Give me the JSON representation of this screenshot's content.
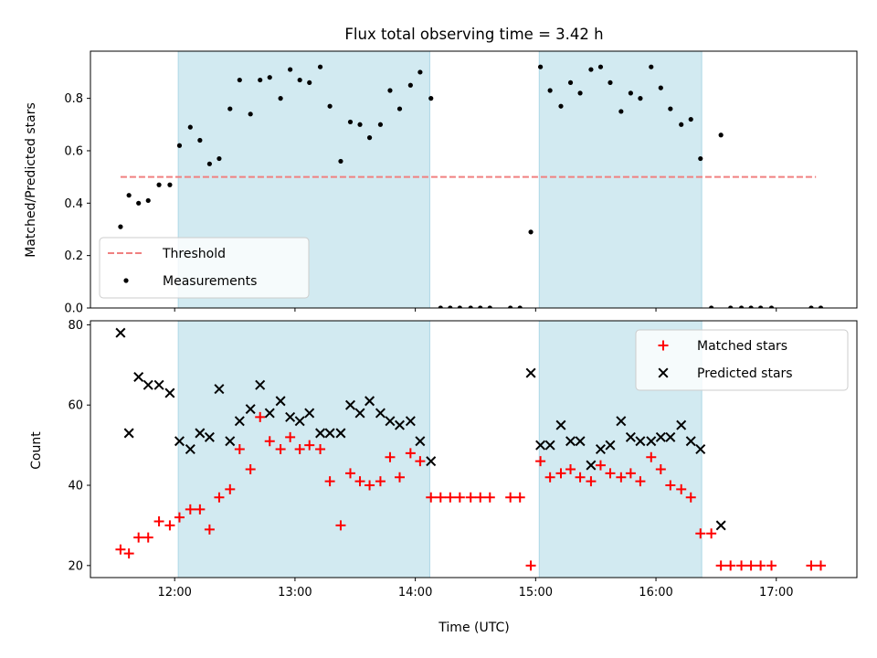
{
  "chart_data": [
    {
      "type": "scatter",
      "title": "Flux total observing time = 3.42 h",
      "xlabel": "",
      "ylabel": "Matched/Predicted stars",
      "x_unit": "hours UTC",
      "xlim": [
        11.3,
        17.67
      ],
      "ylim": [
        0.0,
        0.98
      ],
      "yticks": [
        0.0,
        0.2,
        0.4,
        0.6,
        0.8
      ],
      "ytick_labels": [
        "0.0",
        "0.2",
        "0.4",
        "0.6",
        "0.8"
      ],
      "xticks": [
        12,
        13,
        14,
        15,
        16,
        17
      ],
      "grid": false,
      "legend": {
        "position": "lower-left",
        "entries": [
          {
            "label": "Threshold",
            "kind": "line",
            "color": "#f08080"
          },
          {
            "label": "Measurements",
            "kind": "dot",
            "color": "#000000"
          }
        ]
      },
      "shaded_intervals": [
        [
          12.03,
          14.12
        ],
        [
          15.03,
          16.38
        ]
      ],
      "threshold": {
        "value": 0.5,
        "x": [
          11.55,
          17.33
        ],
        "color": "#f08080"
      },
      "series": [
        {
          "name": "Measurements",
          "x": [
            11.55,
            11.62,
            11.7,
            11.78,
            11.87,
            11.96,
            12.04,
            12.13,
            12.21,
            12.29,
            12.37,
            12.46,
            12.54,
            12.63,
            12.71,
            12.79,
            12.88,
            12.96,
            13.04,
            13.12,
            13.21,
            13.29,
            13.38,
            13.46,
            13.54,
            13.62,
            13.71,
            13.79,
            13.87,
            13.96,
            14.04,
            14.13,
            14.21,
            14.29,
            14.37,
            14.46,
            14.54,
            14.62,
            14.79,
            14.87,
            14.96,
            15.04,
            15.12,
            15.21,
            15.29,
            15.37,
            15.46,
            15.54,
            15.62,
            15.71,
            15.79,
            15.87,
            15.96,
            16.04,
            16.12,
            16.21,
            16.29,
            16.37,
            16.46,
            16.54,
            16.62,
            16.71,
            16.79,
            16.87,
            16.96,
            17.29,
            17.37
          ],
          "values": [
            0.31,
            0.43,
            0.4,
            0.41,
            0.47,
            0.47,
            0.62,
            0.69,
            0.64,
            0.55,
            0.57,
            0.76,
            0.87,
            0.74,
            0.87,
            0.88,
            0.8,
            0.91,
            0.87,
            0.86,
            0.92,
            0.77,
            0.56,
            0.71,
            0.7,
            0.65,
            0.7,
            0.83,
            0.76,
            0.85,
            0.9,
            0.8,
            0.0,
            0.0,
            0.0,
            0.0,
            0.0,
            0.0,
            0.0,
            0.0,
            0.29,
            0.92,
            0.83,
            0.77,
            0.86,
            0.82,
            0.91,
            0.92,
            0.86,
            0.75,
            0.82,
            0.8,
            0.92,
            0.84,
            0.76,
            0.7,
            0.72,
            0.57,
            0.0,
            0.66,
            0.0,
            0.0,
            0.0,
            0.0,
            0.0,
            0.0,
            0.0
          ],
          "color": "#000000"
        }
      ]
    },
    {
      "type": "scatter",
      "title": "",
      "xlabel": "Time (UTC)",
      "ylabel": "Count",
      "x_unit": "hours UTC",
      "xlim": [
        11.3,
        17.67
      ],
      "ylim": [
        17,
        81
      ],
      "yticks": [
        20,
        40,
        60,
        80
      ],
      "ytick_labels": [
        "20",
        "40",
        "60",
        "80"
      ],
      "xticks": [
        12,
        13,
        14,
        15,
        16,
        17
      ],
      "xtick_labels": [
        "12:00",
        "13:00",
        "14:00",
        "15:00",
        "16:00",
        "17:00"
      ],
      "grid": false,
      "legend": {
        "position": "upper-right",
        "entries": [
          {
            "label": "Matched stars",
            "kind": "plus",
            "color": "#ff0000"
          },
          {
            "label": "Predicted stars",
            "kind": "cross",
            "color": "#000000"
          }
        ]
      },
      "shaded_intervals": [
        [
          12.03,
          14.12
        ],
        [
          15.03,
          16.38
        ]
      ],
      "series": [
        {
          "name": "Matched stars",
          "marker": "plus",
          "color": "#ff0000",
          "x": [
            11.55,
            11.62,
            11.7,
            11.78,
            11.87,
            11.96,
            12.04,
            12.13,
            12.21,
            12.29,
            12.37,
            12.46,
            12.54,
            12.63,
            12.71,
            12.79,
            12.88,
            12.96,
            13.04,
            13.12,
            13.21,
            13.29,
            13.38,
            13.46,
            13.54,
            13.62,
            13.71,
            13.79,
            13.87,
            13.96,
            14.04,
            14.13,
            14.21,
            14.29,
            14.37,
            14.46,
            14.54,
            14.62,
            14.79,
            14.87,
            14.96,
            15.04,
            15.12,
            15.21,
            15.29,
            15.37,
            15.46,
            15.54,
            15.62,
            15.71,
            15.79,
            15.87,
            15.96,
            16.04,
            16.12,
            16.21,
            16.29,
            16.37,
            16.46,
            16.54,
            16.62,
            16.71,
            16.79,
            16.87,
            16.96,
            17.29,
            17.37
          ],
          "values": [
            24,
            23,
            27,
            27,
            31,
            30,
            32,
            34,
            34,
            29,
            37,
            39,
            49,
            44,
            57,
            51,
            49,
            52,
            49,
            50,
            49,
            41,
            30,
            43,
            41,
            40,
            41,
            47,
            42,
            48,
            46,
            37,
            37,
            37,
            37,
            37,
            37,
            37,
            37,
            37,
            20,
            46,
            42,
            43,
            44,
            42,
            41,
            45,
            43,
            42,
            43,
            41,
            47,
            44,
            40,
            39,
            37,
            28,
            28,
            20,
            20,
            20,
            20,
            20,
            20,
            20,
            20
          ]
        },
        {
          "name": "Predicted stars",
          "marker": "cross",
          "color": "#000000",
          "x": [
            11.55,
            11.62,
            11.7,
            11.78,
            11.87,
            11.96,
            12.04,
            12.13,
            12.21,
            12.29,
            12.37,
            12.46,
            12.54,
            12.63,
            12.71,
            12.79,
            12.88,
            12.96,
            13.04,
            13.12,
            13.21,
            13.29,
            13.38,
            13.46,
            13.54,
            13.62,
            13.71,
            13.79,
            13.87,
            13.96,
            14.04,
            14.13,
            14.96,
            15.04,
            15.12,
            15.21,
            15.29,
            15.37,
            15.46,
            15.54,
            15.62,
            15.71,
            15.79,
            15.87,
            15.96,
            16.04,
            16.12,
            16.21,
            16.29,
            16.37,
            16.54
          ],
          "values": [
            78,
            53,
            67,
            65,
            65,
            63,
            51,
            49,
            53,
            52,
            64,
            51,
            56,
            59,
            65,
            58,
            61,
            57,
            56,
            58,
            53,
            53,
            53,
            60,
            58,
            61,
            58,
            56,
            55,
            56,
            51,
            46,
            68,
            50,
            50,
            55,
            51,
            51,
            45,
            49,
            50,
            56,
            52,
            51,
            51,
            52,
            52,
            55,
            51,
            49,
            30
          ]
        }
      ]
    }
  ],
  "colors": {
    "shade": "#add8e6",
    "threshold": "#f08080",
    "matched": "#ff0000",
    "predicted": "#000000",
    "measurement": "#000000"
  }
}
